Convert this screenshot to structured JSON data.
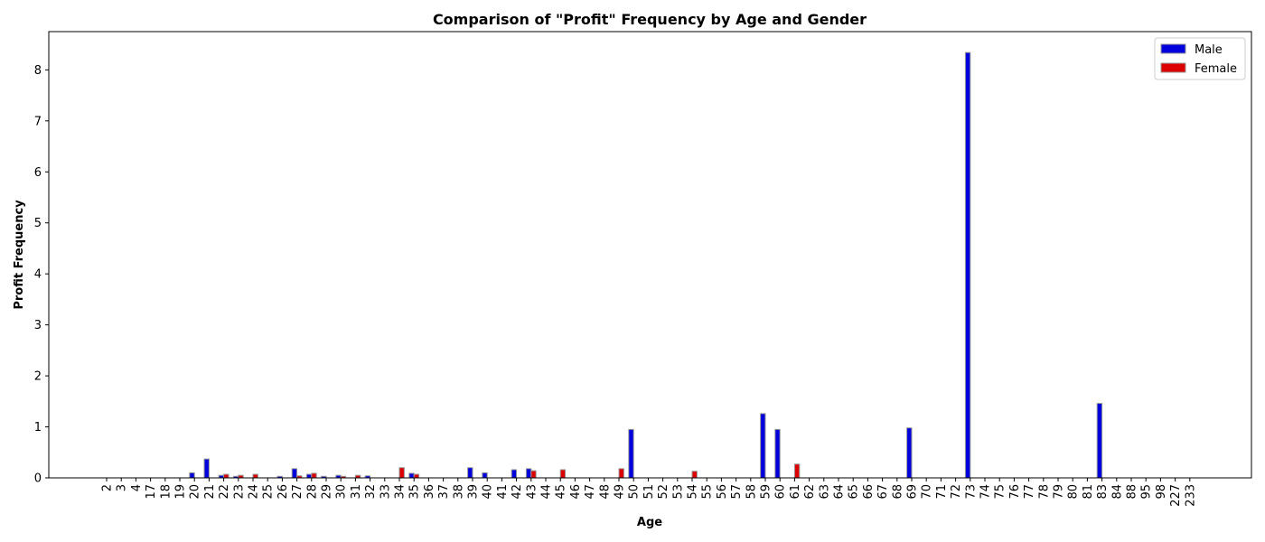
{
  "chart_data": {
    "type": "bar",
    "title": "Comparison of \"Profit\" Frequency by Age and Gender",
    "xlabel": "Age",
    "ylabel": "Profit Frequency",
    "ylim": [
      0,
      8.75
    ],
    "yticks": [
      0,
      1,
      2,
      3,
      4,
      5,
      6,
      7,
      8
    ],
    "grid": false,
    "legend_position": "top-right",
    "categories": [
      "2",
      "3",
      "4",
      "17",
      "18",
      "19",
      "20",
      "21",
      "22",
      "23",
      "24",
      "25",
      "26",
      "27",
      "28",
      "29",
      "30",
      "31",
      "32",
      "33",
      "34",
      "35",
      "36",
      "37",
      "38",
      "39",
      "40",
      "41",
      "42",
      "43",
      "44",
      "45",
      "46",
      "47",
      "48",
      "49",
      "50",
      "51",
      "52",
      "53",
      "54",
      "55",
      "56",
      "57",
      "58",
      "59",
      "60",
      "61",
      "62",
      "63",
      "64",
      "65",
      "66",
      "67",
      "68",
      "69",
      "70",
      "71",
      "72",
      "73",
      "74",
      "75",
      "76",
      "77",
      "78",
      "79",
      "80",
      "81",
      "83",
      "84",
      "88",
      "95",
      "98",
      "227",
      "233"
    ],
    "series": [
      {
        "name": "Male",
        "color": "#0000dd",
        "edge_color": "#999999",
        "values": [
          0,
          0,
          0,
          0,
          0,
          0,
          0.1,
          0.37,
          0.05,
          0.03,
          0,
          0,
          0.03,
          0.18,
          0.07,
          0.03,
          0.05,
          0,
          0.04,
          0,
          0,
          0.09,
          0,
          0,
          0,
          0.2,
          0.1,
          0,
          0.16,
          0.18,
          0,
          0,
          0,
          0,
          0,
          0,
          0.95,
          0,
          0,
          0,
          0,
          0,
          0,
          0,
          0,
          1.26,
          0.95,
          0,
          0,
          0,
          0,
          0,
          0,
          0,
          0,
          0.98,
          0,
          0,
          0,
          8.34,
          0,
          0,
          0,
          0,
          0,
          0,
          0,
          0,
          1.46,
          0,
          0,
          0,
          0,
          0,
          0
        ]
      },
      {
        "name": "Female",
        "color": "#dd0000",
        "edge_color": "#999999",
        "values": [
          0,
          0,
          0,
          0,
          0,
          0,
          0,
          0,
          0.07,
          0.05,
          0.07,
          0,
          0,
          0.04,
          0.09,
          0,
          0.03,
          0.05,
          0,
          0,
          0.2,
          0.07,
          0,
          0,
          0,
          0,
          0,
          0,
          0,
          0.14,
          0,
          0.16,
          0,
          0,
          0,
          0.18,
          0,
          0,
          0,
          0,
          0.13,
          0,
          0,
          0,
          0,
          0,
          0,
          0.27,
          0,
          0,
          0,
          0,
          0,
          0,
          0,
          0,
          0,
          0,
          0,
          0,
          0,
          0,
          0,
          0,
          0,
          0,
          0,
          0,
          0,
          0,
          0,
          0,
          0,
          0,
          0
        ]
      }
    ]
  }
}
